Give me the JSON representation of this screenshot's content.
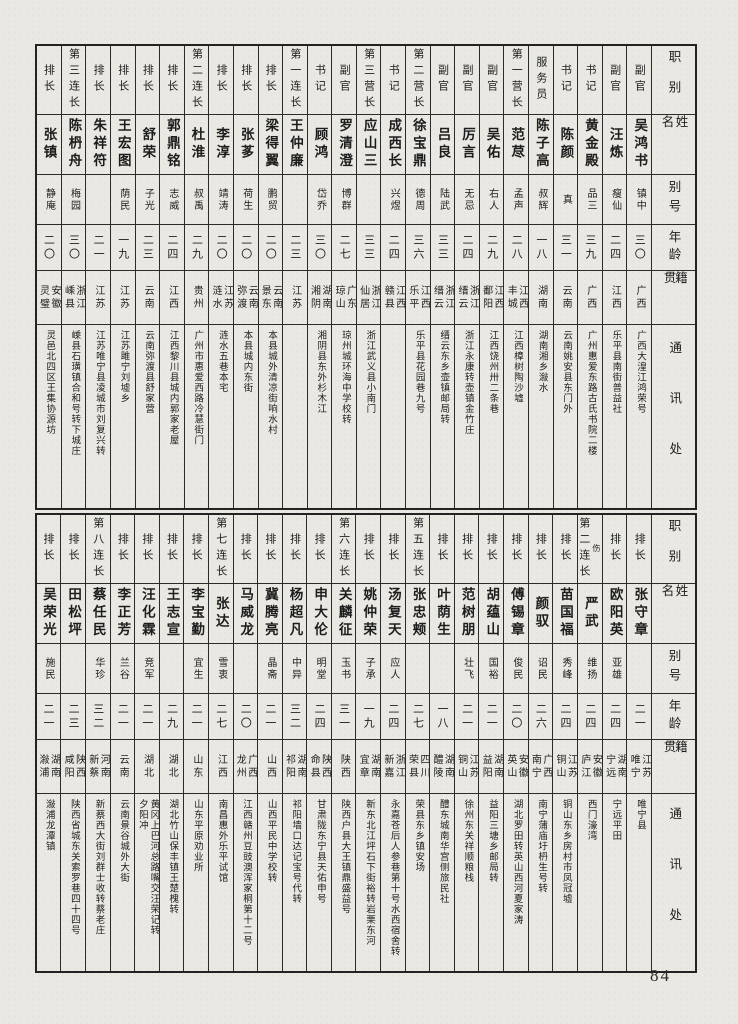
{
  "page": {
    "number": "84"
  },
  "headers": {
    "role": "职别",
    "name": "姓名",
    "alias": "别号",
    "age": "年龄",
    "origin": "籍贯",
    "address": "通讯处"
  },
  "top_table": {
    "people": [
      {
        "role": "副官",
        "name": "吴鸿书",
        "alias": "镇中",
        "age": "三〇",
        "origin": "广西",
        "address": "广西大湟江鸿荣号"
      },
      {
        "role": "副官",
        "name": "汪炼",
        "alias": "瘦仙",
        "age": "二四",
        "origin": "江西",
        "address": "乐平县南街普益社"
      },
      {
        "role": "书记",
        "name": "黄金殿",
        "alias": "品三",
        "age": "三九",
        "origin": "广西",
        "address": "广州惠爱东路古氏书院二楼"
      },
      {
        "role": "书记",
        "name": "陈颜",
        "alias": "真",
        "age": "三一",
        "origin": "云南",
        "address": "云南姚安县东门外"
      },
      {
        "role": "服务员",
        "name": "陈子高",
        "alias": "叔辉",
        "age": "一八",
        "origin": "湖南",
        "address": "湖南湘乡潊水"
      },
      {
        "role": "第一营长",
        "name": "范荩",
        "alias": "孟声",
        "age": "二八",
        "origin": "江西\n丰城",
        "address": "江西樟树陶沙墟"
      },
      {
        "role": "副官",
        "name": "吴佑",
        "alias": "右人",
        "age": "二九",
        "origin": "江西\n鄱阳",
        "address": "江西饶州卅二条巷"
      },
      {
        "role": "副官",
        "name": "厉言",
        "alias": "无忌",
        "age": "二四",
        "origin": "浙江\n缙云",
        "address": "浙江永康转壶镇金竹庄"
      },
      {
        "role": "副官",
        "name": "吕良",
        "alias": "陆武",
        "age": "三三",
        "origin": "浙江\n缙云",
        "address": "缙云东乡壶镇邮局转"
      },
      {
        "role": "第二营长",
        "name": "徐宝鼎",
        "alias": "德周",
        "age": "三六",
        "origin": "江西\n乐平",
        "address": "乐平县花园巷九号"
      },
      {
        "role": "书记",
        "name": "成西长",
        "alias": "兴煜",
        "age": "二四",
        "origin": "江西\n赣县",
        "address": ""
      },
      {
        "role": "第三营长",
        "name": "应山三",
        "alias": "",
        "age": "三三",
        "origin": "浙江\n仙居",
        "address": "浙江武义县小南门"
      },
      {
        "role": "副官",
        "name": "罗清澄",
        "alias": "博群",
        "age": "二七",
        "origin": "广东\n琼山",
        "address": "琼州城环海中学校转"
      },
      {
        "role": "书记",
        "name": "顾鸿",
        "alias": "岱乔",
        "age": "三〇",
        "origin": "湖南\n湘阴",
        "address": "湘阴县东外杉木江"
      },
      {
        "role": "第一连长",
        "name": "王仲廉",
        "alias": "",
        "age": "二三",
        "origin": "江苏",
        "address": ""
      },
      {
        "role": "排长",
        "name": "梁得翼",
        "alias": "鹏贸",
        "age": "二〇",
        "origin": "云南\n景东",
        "address": "本县城外清凉街响水村"
      },
      {
        "role": "排长",
        "name": "张茤",
        "alias": "荷生",
        "age": "二〇",
        "origin": "云南\n弥渡",
        "address": "本县城内东街"
      },
      {
        "role": "排长",
        "name": "李淳",
        "alias": "靖涛",
        "age": "二〇",
        "origin": "江苏\n涟水",
        "address": "涟水五巷本宅"
      },
      {
        "role": "第二连长",
        "name": "杜淮",
        "alias": "叔禹",
        "age": "二九",
        "origin": "贵州",
        "address": "广州市惠爱西路冷慧街门"
      },
      {
        "role": "排长",
        "name": "郭鼎铭",
        "alias": "志威",
        "age": "二四",
        "origin": "江西",
        "address": "江西黎川县城内郭家老屋"
      },
      {
        "role": "排长",
        "name": "舒荣",
        "alias": "子光",
        "age": "二三",
        "origin": "云南",
        "address": "云南弥渡县舒家营"
      },
      {
        "role": "排长",
        "name": "王宏图",
        "alias": "荫民",
        "age": "一九",
        "origin": "江苏",
        "address": "江苏雎宁刘墟乡"
      },
      {
        "role": "排长",
        "name": "朱祥符",
        "alias": "",
        "age": "二一",
        "origin": "江苏",
        "address": "江苏唯宁县凌城市刘复兴转"
      },
      {
        "role": "第三连长",
        "name": "陈枬舟",
        "alias": "梅园",
        "age": "三〇",
        "origin": "浙江\n嵊县",
        "address": "嵊县石璜镇合和号转下城庄"
      },
      {
        "role": "排长",
        "name": "张镇",
        "alias": "静庵",
        "age": "二〇",
        "origin": "安徽\n灵璧",
        "address": "灵邑北四区王集协源坊"
      }
    ]
  },
  "bottom_table": {
    "people": [
      {
        "role": "排长",
        "name": "张守章",
        "alias": "",
        "age": "二一",
        "origin": "江苏\n唯宁",
        "address": "唯宁县"
      },
      {
        "role": "排长",
        "name": "欧阳英",
        "alias": "亚雄",
        "age": "二四",
        "origin": "湖南\n宁远",
        "address": "宁远平田"
      },
      {
        "role": "第二连长",
        "role_note": "伤",
        "name": "严武",
        "alias": "维扬",
        "age": "二四",
        "origin": "安徽\n庐江",
        "address": "西门濠湾"
      },
      {
        "role": "排长",
        "name": "苗国福",
        "alias": "秀峰",
        "age": "二四",
        "origin": "江苏\n铜山",
        "address": "铜山东乡房村市凤冠墟"
      },
      {
        "role": "排长",
        "name": "颜驭",
        "alias": "诏民",
        "age": "二六",
        "origin": "广西\n南宁",
        "address": "南宁蒲庙圩枬生号转"
      },
      {
        "role": "排长",
        "name": "傅锡章",
        "alias": "俊民",
        "age": "二〇",
        "origin": "安徽\n英山",
        "address": "湖北罗田转英山西河夏家涛"
      },
      {
        "role": "排长",
        "name": "胡蕴山",
        "alias": "国裕",
        "age": "二一",
        "origin": "湖南\n益阳",
        "address": "益阳三塘乡邮局转"
      },
      {
        "role": "排长",
        "name": "范树朋",
        "alias": "壮飞",
        "age": "二一",
        "origin": "江苏\n铜山",
        "address": "徐州东关祥顺粮栈"
      },
      {
        "role": "排长",
        "name": "叶荫生",
        "alias": "",
        "age": "一八",
        "origin": "湖南\n醴陵",
        "address": "醴东城南华宫侧旅民社"
      },
      {
        "role": "第五连长",
        "name": "张忠颊",
        "alias": "",
        "age": "二七",
        "origin": "四川\n荣县",
        "address": "荣县东乡镇安场"
      },
      {
        "role": "排长",
        "name": "汤复天",
        "alias": "应人",
        "age": "二四",
        "origin": "浙江\n新嘉",
        "address": "永嘉苍后人参巷第十号水西宿舍转"
      },
      {
        "role": "排长",
        "name": "姚仲荣",
        "alias": "子承",
        "age": "一九",
        "origin": "湖南\n宜章",
        "address": "新东北江坪石下街裕转岩栗东河"
      },
      {
        "role": "第六连长",
        "name": "关麟征",
        "alias": "玉书",
        "age": "三一",
        "origin": "陕西",
        "address": "陕西户县大王镇鼎盛益号"
      },
      {
        "role": "排长",
        "name": "申大伦",
        "alias": "明堂",
        "age": "二四",
        "origin": "陕西\n命县",
        "address": "甘肃陇东宁县天佑申号"
      },
      {
        "role": "排长",
        "name": "杨超凡",
        "alias": "中异",
        "age": "三二",
        "origin": "湖南\n祁阳",
        "address": "祁阳墙口达记宝号代转"
      },
      {
        "role": "排长",
        "name": "冀腾亮",
        "alias": "晶斋",
        "age": "二一",
        "origin": "山西",
        "address": "山西平民中学校转"
      },
      {
        "role": "排长",
        "name": "马威龙",
        "alias": "",
        "age": "二〇",
        "origin": "广西\n龙州",
        "address": "江西赣州豆豉澳浑家桐第十二号"
      },
      {
        "role": "第七连长",
        "name": "张达",
        "alias": "雪衷",
        "age": "二七",
        "origin": "江西",
        "address": "南昌惠外乐平试馆"
      },
      {
        "role": "排长",
        "name": "李宝勤",
        "alias": "宜生",
        "age": "二一",
        "origin": "山东",
        "address": "山东平原劝业所"
      },
      {
        "role": "排长",
        "name": "王志宣",
        "alias": "",
        "age": "二九",
        "origin": "湖北",
        "address": "湖北竹山保丰镇王楚槐转"
      },
      {
        "role": "排长",
        "name": "汪化霖",
        "alias": "竞军",
        "age": "二一",
        "origin": "湖北",
        "address": "黄冈上巴河总路嘴交汪荣记转\n夕阳冲"
      },
      {
        "role": "排长",
        "name": "李正芳",
        "alias": "兰谷",
        "age": "二一",
        "origin": "云南",
        "address": "云南景谷城外大街"
      },
      {
        "role": "第八连长",
        "name": "蔡任民",
        "alias": "华珍",
        "age": "三二",
        "origin": "河南\n新蔡",
        "address": "新蔡西大街刘群士收转蔡老庄"
      },
      {
        "role": "排长",
        "name": "田松坪",
        "alias": "",
        "age": "二三",
        "origin": "陕西\n咸阳",
        "address": "陕西省城东关索罗巷四十四号"
      },
      {
        "role": "排长",
        "name": "吴荣光",
        "alias": "施民",
        "age": "二一",
        "origin": "湖南\n潊浦",
        "address": "潊浦龙潭镇"
      }
    ]
  }
}
